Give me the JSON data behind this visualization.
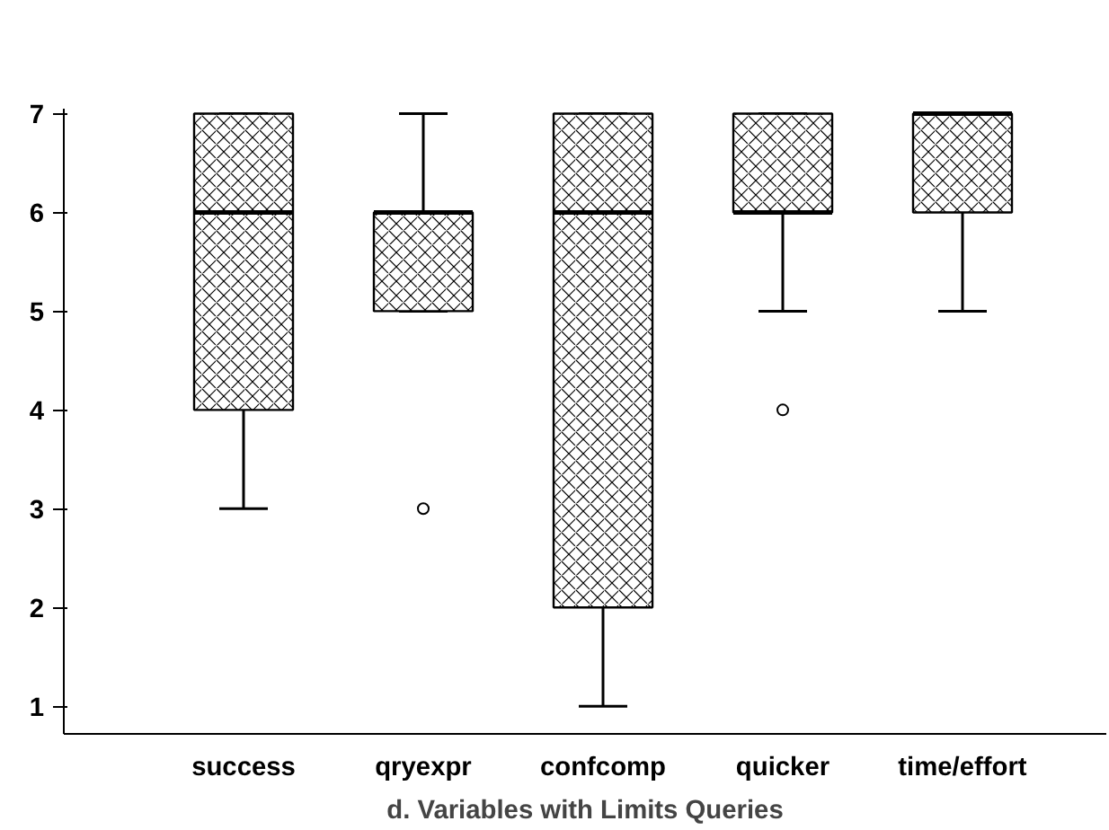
{
  "chart_data": {
    "type": "box",
    "xlabel": "d. Variables with Limits Queries",
    "categories": [
      "success",
      "qryexpr",
      "confcomp",
      "quicker",
      "time/effort"
    ],
    "boxes": [
      {
        "low": 3,
        "q1": 4,
        "median": 6,
        "q3": 7,
        "high": 7
      },
      {
        "low": 5,
        "q1": 5,
        "median": 6,
        "q3": 6,
        "high": 7,
        "outliers": [
          3
        ]
      },
      {
        "low": 1,
        "q1": 2,
        "median": 6,
        "q3": 7,
        "high": 7
      },
      {
        "low": 5,
        "q1": 6,
        "median": 6,
        "q3": 7,
        "high": 7,
        "outliers": [
          4
        ]
      },
      {
        "low": 5,
        "q1": 6,
        "median": 7,
        "q3": 7,
        "high": 7
      }
    ],
    "ylim": [
      0.72,
      7.05
    ],
    "yticks": [
      1,
      2,
      3,
      4,
      5,
      6,
      7
    ],
    "grid": false
  }
}
